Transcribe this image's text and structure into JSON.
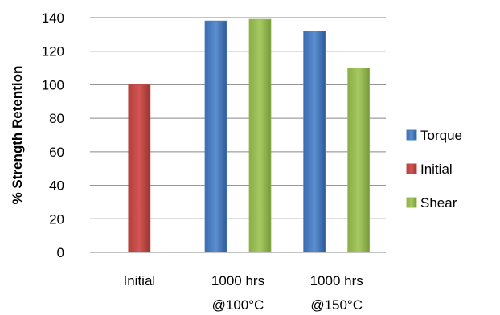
{
  "chart_data": {
    "type": "bar",
    "title": "",
    "xlabel": "",
    "ylabel": "% Strength Retention",
    "ylim": [
      0,
      140
    ],
    "yticks": [
      0,
      20,
      40,
      60,
      80,
      100,
      120,
      140
    ],
    "grid": true,
    "legend_position": "right",
    "categories": [
      [
        "Initial"
      ],
      [
        "1000 hrs",
        "@100°C"
      ],
      [
        "1000 hrs",
        "@150°C"
      ]
    ],
    "series": [
      {
        "name": "Torque",
        "color": "#4a7ebb",
        "values": [
          null,
          138,
          132
        ]
      },
      {
        "name": "Initial",
        "color": "#be4b48",
        "values": [
          100,
          null,
          null
        ]
      },
      {
        "name": "Shear",
        "color": "#98b954",
        "values": [
          null,
          139,
          110
        ]
      }
    ]
  }
}
